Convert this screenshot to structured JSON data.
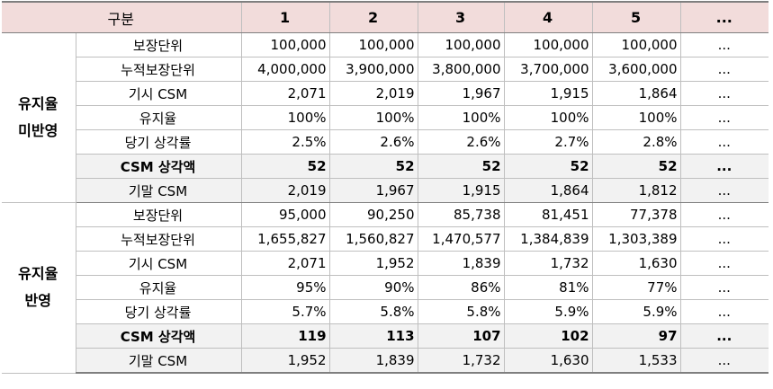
{
  "header": {
    "label": "구분",
    "columns": [
      "1",
      "2",
      "3",
      "4",
      "5",
      "..."
    ]
  },
  "groups": [
    {
      "title_line1": "유지율",
      "title_line2": "미반영",
      "rows": [
        {
          "label": "보장단위",
          "values": [
            "100,000",
            "100,000",
            "100,000",
            "100,000",
            "100,000",
            "..."
          ]
        },
        {
          "label": "누적보장단위",
          "values": [
            "4,000,000",
            "3,900,000",
            "3,800,000",
            "3,700,000",
            "3,600,000",
            "..."
          ]
        },
        {
          "label": "기시 CSM",
          "values": [
            "2,071",
            "2,019",
            "1,967",
            "1,915",
            "1,864",
            "..."
          ]
        },
        {
          "label": "유지율",
          "values": [
            "100%",
            "100%",
            "100%",
            "100%",
            "100%",
            "..."
          ]
        },
        {
          "label": "당기 상각률",
          "values": [
            "2.5%",
            "2.6%",
            "2.6%",
            "2.7%",
            "2.8%",
            "..."
          ]
        },
        {
          "label": "CSM 상각액",
          "values": [
            "52",
            "52",
            "52",
            "52",
            "52",
            "..."
          ]
        },
        {
          "label": "기말 CSM",
          "values": [
            "2,019",
            "1,967",
            "1,915",
            "1,864",
            "1,812",
            "..."
          ]
        }
      ]
    },
    {
      "title_line1": "유지율",
      "title_line2": "반영",
      "rows": [
        {
          "label": "보장단위",
          "values": [
            "95,000",
            "90,250",
            "85,738",
            "81,451",
            "77,378",
            "..."
          ]
        },
        {
          "label": "누적보장단위",
          "values": [
            "1,655,827",
            "1,560,827",
            "1,470,577",
            "1,384,839",
            "1,303,389",
            "..."
          ]
        },
        {
          "label": "기시 CSM",
          "values": [
            "2,071",
            "1,952",
            "1,839",
            "1,732",
            "1,630",
            "..."
          ]
        },
        {
          "label": "유지율",
          "values": [
            "95%",
            "90%",
            "86%",
            "81%",
            "77%",
            "..."
          ]
        },
        {
          "label": "당기 상각률",
          "values": [
            "5.7%",
            "5.8%",
            "5.8%",
            "5.9%",
            "5.9%",
            "..."
          ]
        },
        {
          "label": "CSM 상각액",
          "values": [
            "119",
            "113",
            "107",
            "102",
            "97",
            "..."
          ]
        },
        {
          "label": "기말 CSM",
          "values": [
            "1,952",
            "1,839",
            "1,732",
            "1,630",
            "1,533",
            "..."
          ]
        }
      ]
    }
  ]
}
